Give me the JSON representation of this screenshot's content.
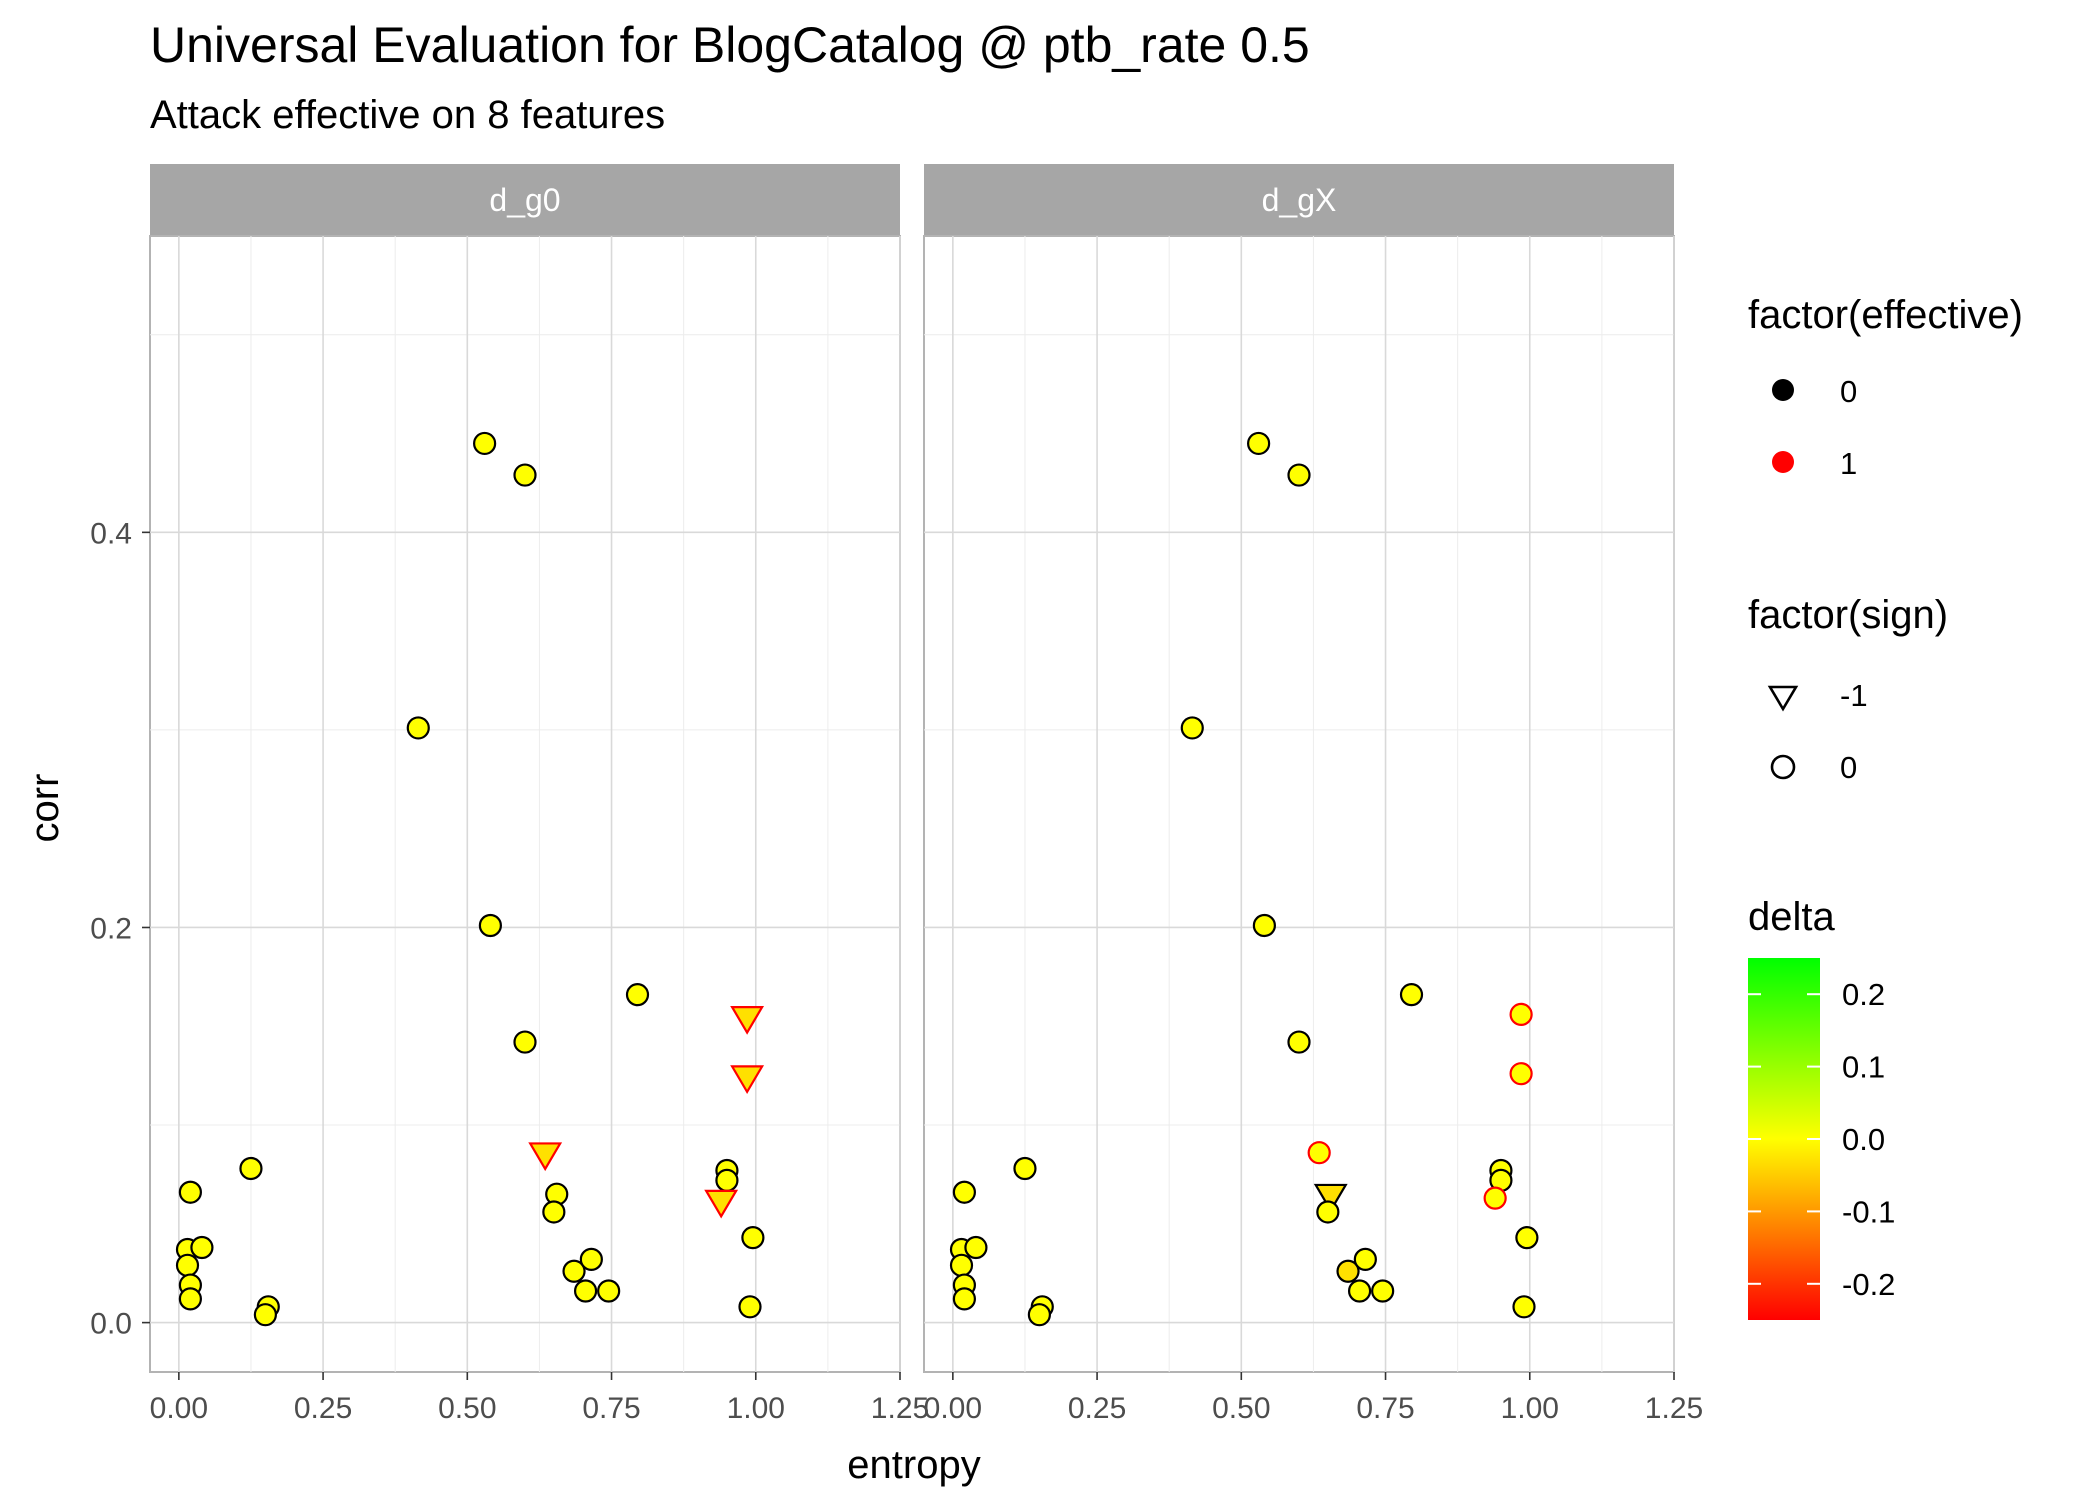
{
  "chart_data": {
    "type": "scatter",
    "title": "Universal Evaluation for BlogCatalog @ ptb_rate 0.5",
    "subtitle": "Attack effective on 8 features",
    "xlabel": "entropy",
    "ylabel": "corr",
    "xlim": [
      -0.05,
      1.25
    ],
    "ylim": [
      -0.025,
      0.55
    ],
    "x_ticks": [
      0.0,
      0.25,
      0.5,
      0.75,
      1.0,
      1.25
    ],
    "x_tick_labels": [
      "0.00",
      "0.25",
      "0.50",
      "0.75",
      "1.00",
      "1.25"
    ],
    "y_ticks": [
      0.0,
      0.2,
      0.4
    ],
    "y_tick_labels": [
      "0.0",
      "0.2",
      "0.4"
    ],
    "grid": true,
    "theme": "light",
    "legend_position": "right",
    "colors": {
      "effective_0": "#000000",
      "effective_1": "#ff0000",
      "delta_high": "#00ff00",
      "delta_mid": "#ffff00",
      "delta_low": "#ff0000",
      "strip": "#a6a6a6"
    },
    "facets": [
      {
        "label": "d_g0",
        "points": [
          {
            "x": 0.02,
            "y": 0.066,
            "effective": 0,
            "sign": 0,
            "delta": 0.0
          },
          {
            "x": 0.015,
            "y": 0.037,
            "effective": 0,
            "sign": 0,
            "delta": 0.0
          },
          {
            "x": 0.04,
            "y": 0.038,
            "effective": 0,
            "sign": 0,
            "delta": 0.0
          },
          {
            "x": 0.015,
            "y": 0.029,
            "effective": 0,
            "sign": 0,
            "delta": 0.0
          },
          {
            "x": 0.02,
            "y": 0.019,
            "effective": 0,
            "sign": 0,
            "delta": 0.0
          },
          {
            "x": 0.02,
            "y": 0.012,
            "effective": 0,
            "sign": 0,
            "delta": 0.0
          },
          {
            "x": 0.125,
            "y": 0.078,
            "effective": 0,
            "sign": 0,
            "delta": 0.0
          },
          {
            "x": 0.155,
            "y": 0.008,
            "effective": 0,
            "sign": 0,
            "delta": 0.0
          },
          {
            "x": 0.15,
            "y": 0.004,
            "effective": 0,
            "sign": 0,
            "delta": 0.0
          },
          {
            "x": 0.415,
            "y": 0.301,
            "effective": 0,
            "sign": 0,
            "delta": 0.0
          },
          {
            "x": 0.53,
            "y": 0.445,
            "effective": 0,
            "sign": 0,
            "delta": 0.0
          },
          {
            "x": 0.6,
            "y": 0.429,
            "effective": 0,
            "sign": 0,
            "delta": 0.0
          },
          {
            "x": 0.54,
            "y": 0.201,
            "effective": 0,
            "sign": 0,
            "delta": 0.0
          },
          {
            "x": 0.6,
            "y": 0.142,
            "effective": 0,
            "sign": 0,
            "delta": 0.0
          },
          {
            "x": 0.795,
            "y": 0.166,
            "effective": 0,
            "sign": 0,
            "delta": 0.0
          },
          {
            "x": 0.635,
            "y": 0.085,
            "effective": 1,
            "sign": -1,
            "delta": -0.03
          },
          {
            "x": 0.655,
            "y": 0.065,
            "effective": 0,
            "sign": 0,
            "delta": 0.0
          },
          {
            "x": 0.65,
            "y": 0.056,
            "effective": 0,
            "sign": 0,
            "delta": 0.0
          },
          {
            "x": 0.685,
            "y": 0.026,
            "effective": 0,
            "sign": 0,
            "delta": 0.0
          },
          {
            "x": 0.715,
            "y": 0.032,
            "effective": 0,
            "sign": 0,
            "delta": 0.0
          },
          {
            "x": 0.705,
            "y": 0.016,
            "effective": 0,
            "sign": 0,
            "delta": 0.0
          },
          {
            "x": 0.745,
            "y": 0.016,
            "effective": 0,
            "sign": 0,
            "delta": 0.0
          },
          {
            "x": 0.95,
            "y": 0.077,
            "effective": 0,
            "sign": 0,
            "delta": 0.0
          },
          {
            "x": 0.95,
            "y": 0.072,
            "effective": 0,
            "sign": 0,
            "delta": 0.0
          },
          {
            "x": 0.94,
            "y": 0.061,
            "effective": 1,
            "sign": -1,
            "delta": -0.03
          },
          {
            "x": 0.985,
            "y": 0.154,
            "effective": 1,
            "sign": -1,
            "delta": -0.03
          },
          {
            "x": 0.985,
            "y": 0.124,
            "effective": 1,
            "sign": -1,
            "delta": -0.03
          },
          {
            "x": 0.995,
            "y": 0.043,
            "effective": 0,
            "sign": 0,
            "delta": 0.0
          },
          {
            "x": 0.99,
            "y": 0.008,
            "effective": 0,
            "sign": 0,
            "delta": 0.0
          }
        ]
      },
      {
        "label": "d_gX",
        "points": [
          {
            "x": 0.02,
            "y": 0.066,
            "effective": 0,
            "sign": 0,
            "delta": 0.0
          },
          {
            "x": 0.015,
            "y": 0.037,
            "effective": 0,
            "sign": 0,
            "delta": 0.0
          },
          {
            "x": 0.04,
            "y": 0.038,
            "effective": 0,
            "sign": 0,
            "delta": 0.0
          },
          {
            "x": 0.015,
            "y": 0.029,
            "effective": 0,
            "sign": 0,
            "delta": 0.0
          },
          {
            "x": 0.02,
            "y": 0.019,
            "effective": 0,
            "sign": 0,
            "delta": 0.0
          },
          {
            "x": 0.02,
            "y": 0.012,
            "effective": 0,
            "sign": 0,
            "delta": 0.0
          },
          {
            "x": 0.125,
            "y": 0.078,
            "effective": 0,
            "sign": 0,
            "delta": 0.0
          },
          {
            "x": 0.155,
            "y": 0.008,
            "effective": 0,
            "sign": 0,
            "delta": 0.0
          },
          {
            "x": 0.15,
            "y": 0.004,
            "effective": 0,
            "sign": 0,
            "delta": 0.0
          },
          {
            "x": 0.415,
            "y": 0.301,
            "effective": 0,
            "sign": 0,
            "delta": 0.0
          },
          {
            "x": 0.53,
            "y": 0.445,
            "effective": 0,
            "sign": 0,
            "delta": 0.0
          },
          {
            "x": 0.6,
            "y": 0.429,
            "effective": 0,
            "sign": 0,
            "delta": 0.0
          },
          {
            "x": 0.54,
            "y": 0.201,
            "effective": 0,
            "sign": 0,
            "delta": 0.0
          },
          {
            "x": 0.6,
            "y": 0.142,
            "effective": 0,
            "sign": 0,
            "delta": 0.0
          },
          {
            "x": 0.795,
            "y": 0.166,
            "effective": 0,
            "sign": 0,
            "delta": 0.0
          },
          {
            "x": 0.635,
            "y": 0.086,
            "effective": 1,
            "sign": 0,
            "delta": 0.0
          },
          {
            "x": 0.655,
            "y": 0.064,
            "effective": 0,
            "sign": -1,
            "delta": -0.03
          },
          {
            "x": 0.65,
            "y": 0.056,
            "effective": 0,
            "sign": 0,
            "delta": 0.0
          },
          {
            "x": 0.685,
            "y": 0.026,
            "effective": 0,
            "sign": 0,
            "delta": -0.03
          },
          {
            "x": 0.715,
            "y": 0.032,
            "effective": 0,
            "sign": 0,
            "delta": 0.0
          },
          {
            "x": 0.705,
            "y": 0.016,
            "effective": 0,
            "sign": 0,
            "delta": 0.0
          },
          {
            "x": 0.745,
            "y": 0.016,
            "effective": 0,
            "sign": 0,
            "delta": 0.0
          },
          {
            "x": 0.95,
            "y": 0.077,
            "effective": 0,
            "sign": 0,
            "delta": 0.0
          },
          {
            "x": 0.95,
            "y": 0.072,
            "effective": 0,
            "sign": 0,
            "delta": 0.0
          },
          {
            "x": 0.94,
            "y": 0.063,
            "effective": 1,
            "sign": 0,
            "delta": 0.0
          },
          {
            "x": 0.985,
            "y": 0.156,
            "effective": 1,
            "sign": 0,
            "delta": 0.0
          },
          {
            "x": 0.985,
            "y": 0.126,
            "effective": 1,
            "sign": 0,
            "delta": 0.0
          },
          {
            "x": 0.995,
            "y": 0.043,
            "effective": 0,
            "sign": 0,
            "delta": 0.0
          },
          {
            "x": 0.99,
            "y": 0.008,
            "effective": 0,
            "sign": 0,
            "delta": 0.0
          }
        ]
      }
    ],
    "legends": [
      {
        "title": "factor(effective)",
        "type": "color",
        "items": [
          {
            "label": "0",
            "color": "#000000"
          },
          {
            "label": "1",
            "color": "#ff0000"
          }
        ]
      },
      {
        "title": "factor(sign)",
        "type": "shape",
        "items": [
          {
            "label": "-1",
            "shape": "triangle-down"
          },
          {
            "label": "0",
            "shape": "circle"
          }
        ]
      },
      {
        "title": "delta",
        "type": "colorbar",
        "limits": [
          -0.25,
          0.25
        ],
        "ticks": [
          0.2,
          0.1,
          0.0,
          -0.1,
          -0.2
        ],
        "tick_labels": [
          "0.2",
          "0.1",
          "0.0",
          "-0.1",
          "-0.2"
        ]
      }
    ]
  }
}
